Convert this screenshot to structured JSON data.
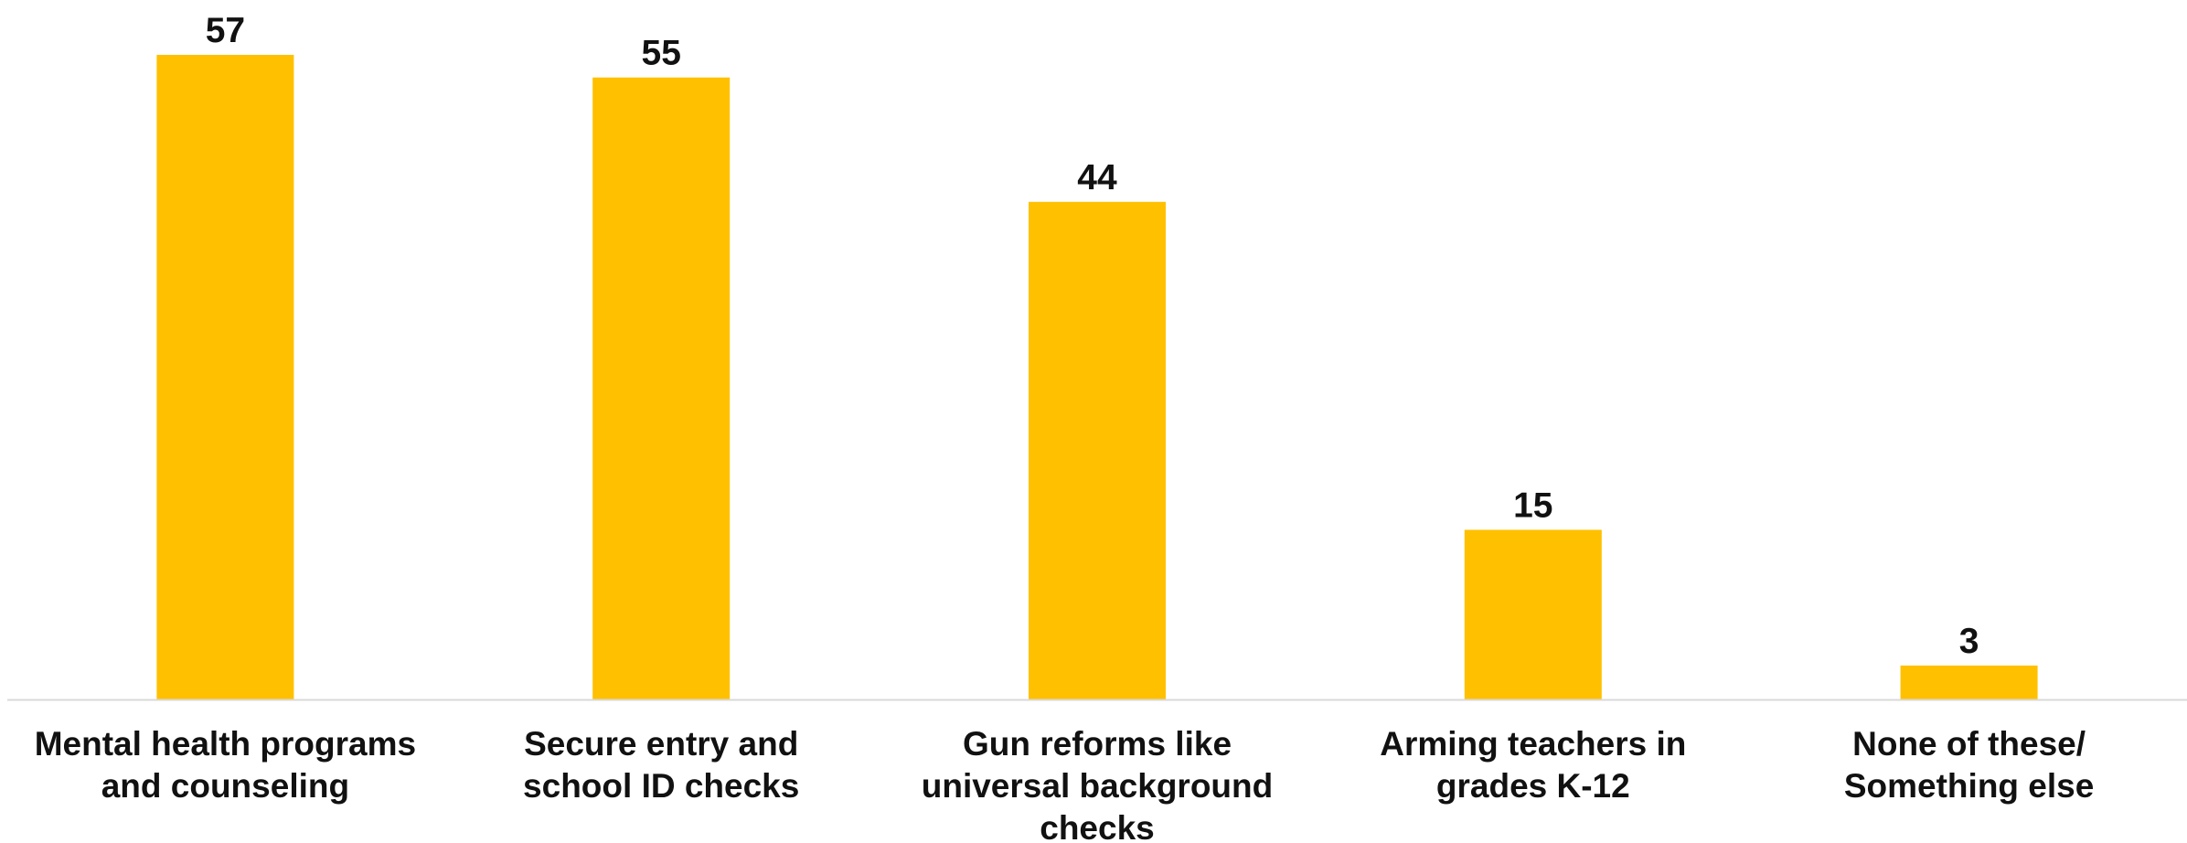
{
  "chart_data": {
    "type": "bar",
    "title": "",
    "xlabel": "",
    "ylabel": "",
    "categories": [
      [
        "Mental health programs",
        "and counseling"
      ],
      [
        "Secure entry and",
        "school ID checks"
      ],
      [
        "Gun reforms like",
        "universal background",
        "checks"
      ],
      [
        "Arming teachers in",
        "grades K-12"
      ],
      [
        "None of these/",
        "Something else"
      ]
    ],
    "values": [
      57,
      55,
      44,
      15,
      3
    ],
    "ylim": [
      0,
      60
    ],
    "grid": false,
    "legend": "none",
    "bar_color": "#FFC000",
    "axis_color": "#D9D9D9",
    "text_color": "#111111"
  }
}
